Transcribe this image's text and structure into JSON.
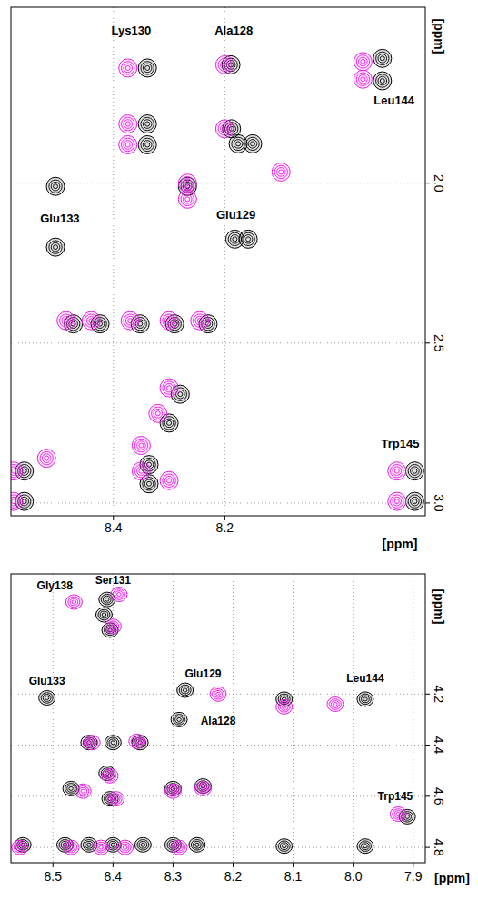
{
  "chart_data": [
    {
      "type": "scatter",
      "x_label": "[ppm]",
      "y_label": "[ppm]",
      "xlim": [
        8.584,
        7.84
      ],
      "ylim": [
        1.45,
        3.04
      ],
      "xticks": [
        8.4,
        8.2
      ],
      "yticks": [
        {
          "value": 2,
          "label": "2.0"
        },
        {
          "value": 2.5,
          "label": "2.5"
        },
        {
          "value": 3,
          "label": "3.0"
        }
      ],
      "grid": true,
      "series": [
        {
          "color": "#000000",
          "marker": "contour",
          "x": [
            8.339,
            8.189,
            7.917,
            7.917,
            8.339,
            8.339,
            8.188,
            8.176,
            8.15,
            8.504,
            8.504,
            8.182,
            8.158,
            8.267,
            8.472,
            8.424,
            8.352,
            8.29,
            8.23,
            8.28,
            8.3,
            8.336,
            8.336,
            8.56,
            8.56,
            7.859,
            7.859
          ],
          "values": [
            1.64,
            1.63,
            1.61,
            1.68,
            1.815,
            1.88,
            1.83,
            1.877,
            1.877,
            2.01,
            2.2,
            2.175,
            2.175,
            2.01,
            2.44,
            2.44,
            2.44,
            2.44,
            2.44,
            2.66,
            2.75,
            2.88,
            2.94,
            2.9,
            2.995,
            2.9,
            2.995
          ]
        },
        {
          "color": "#e61ee6",
          "marker": "contour",
          "x": [
            8.374,
            8.2,
            7.952,
            7.952,
            8.374,
            8.374,
            8.2,
            8.099,
            8.267,
            8.267,
            8.485,
            8.44,
            8.37,
            8.3,
            8.245,
            8.3,
            8.32,
            8.35,
            8.35,
            8.3,
            8.579,
            8.579,
            7.891,
            7.891,
            8.52
          ],
          "values": [
            1.64,
            1.63,
            1.62,
            1.675,
            1.815,
            1.88,
            1.83,
            1.965,
            2.0,
            2.05,
            2.43,
            2.43,
            2.43,
            2.43,
            2.43,
            2.64,
            2.72,
            2.82,
            2.9,
            2.93,
            2.9,
            2.995,
            2.9,
            2.995,
            2.86
          ]
        }
      ],
      "annotations": [
        {
          "text": "Lys130",
          "x": 8.368,
          "y": 1.522
        },
        {
          "text": "Ala128",
          "x": 8.184,
          "y": 1.522
        },
        {
          "text": "Leu144",
          "x": 7.896,
          "y": 1.742
        },
        {
          "text": "Glu133",
          "x": 8.496,
          "y": 2.11
        },
        {
          "text": "Glu129",
          "x": 8.18,
          "y": 2.1
        },
        {
          "text": "Trp145",
          "x": 7.885,
          "y": 2.815
        }
      ]
    },
    {
      "type": "scatter",
      "x_label": "[ppm]",
      "y_label": "[ppm]",
      "xlim": [
        8.57,
        7.88
      ],
      "ylim": [
        3.73,
        4.86
      ],
      "xticks": [
        8.5,
        8.4,
        8.3,
        8.2,
        8.1,
        {
          "value": 8,
          "label": "8.0"
        },
        7.9
      ],
      "yticks": [
        4.2,
        4.4,
        4.6,
        4.8
      ],
      "grid": true,
      "series": [
        {
          "color": "#000000",
          "marker": "contour",
          "x": [
            8.41,
            8.415,
            8.405,
            8.51,
            8.28,
            8.29,
            8.115,
            7.98,
            8.44,
            8.4,
            8.355,
            8.47,
            8.41,
            8.405,
            8.3,
            8.25,
            7.91,
            8.55,
            8.48,
            8.44,
            8.4,
            8.35,
            8.3,
            8.26,
            8.115,
            7.98
          ],
          "values": [
            3.83,
            3.89,
            3.95,
            4.215,
            4.185,
            4.3,
            4.22,
            4.22,
            4.39,
            4.39,
            4.39,
            4.57,
            4.51,
            4.61,
            4.57,
            4.56,
            4.68,
            4.79,
            4.79,
            4.79,
            4.79,
            4.79,
            4.79,
            4.79,
            4.795,
            4.795
          ]
        },
        {
          "color": "#e61ee6",
          "marker": "contour",
          "x": [
            8.39,
            8.4,
            8.465,
            8.225,
            8.115,
            8.03,
            8.435,
            8.36,
            8.45,
            8.405,
            8.395,
            8.3,
            8.25,
            7.925,
            8.555,
            8.47,
            8.42,
            8.38,
            8.29
          ],
          "values": [
            3.81,
            3.935,
            3.84,
            4.2,
            4.25,
            4.24,
            4.39,
            4.385,
            4.58,
            4.52,
            4.61,
            4.58,
            4.57,
            4.67,
            4.8,
            4.8,
            4.8,
            4.8,
            4.8
          ]
        }
      ],
      "annotations": [
        {
          "text": "Ser131",
          "x": 8.4,
          "y": 3.755
        },
        {
          "text": "Gly138",
          "x": 8.497,
          "y": 3.775
        },
        {
          "text": "Glu133",
          "x": 8.51,
          "y": 4.15
        },
        {
          "text": "Glu129",
          "x": 8.25,
          "y": 4.12
        },
        {
          "text": "Ala128",
          "x": 8.225,
          "y": 4.305
        },
        {
          "text": "Leu144",
          "x": 7.98,
          "y": 4.14
        },
        {
          "text": "Trp145",
          "x": 7.93,
          "y": 4.6
        }
      ]
    }
  ]
}
